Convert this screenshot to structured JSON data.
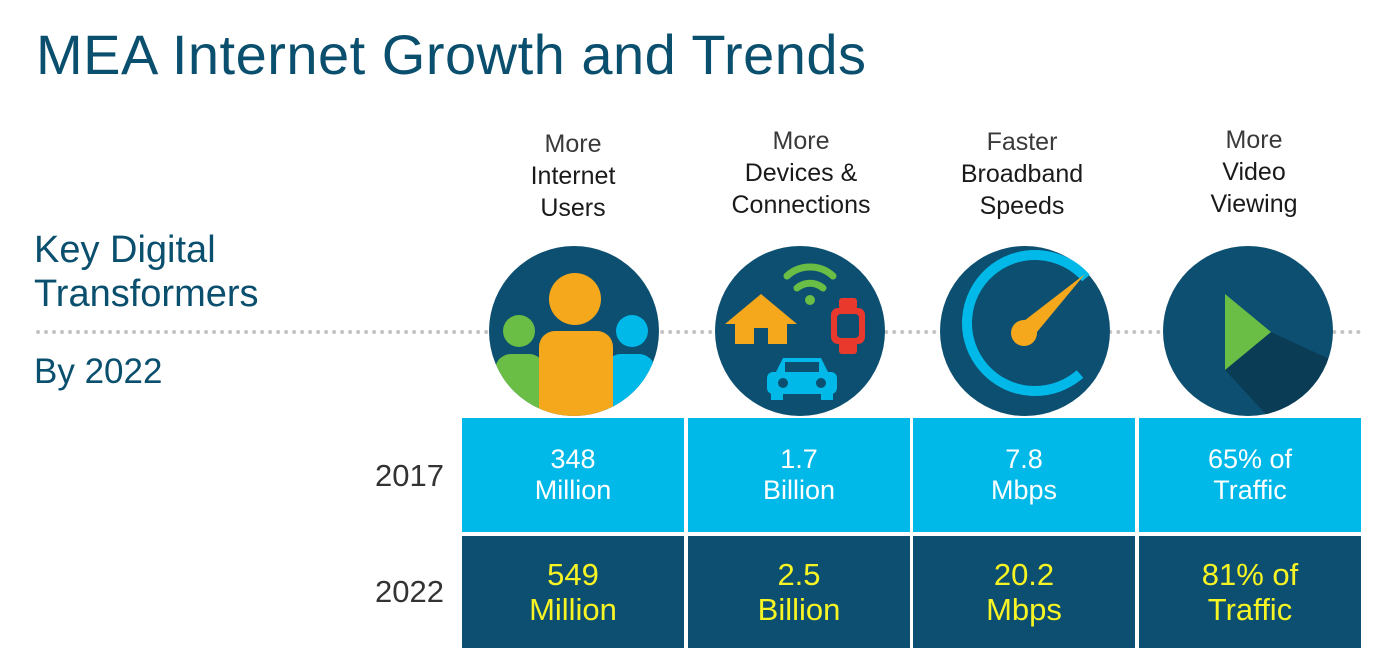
{
  "title": "MEA Internet Growth and Trends",
  "subtitle": {
    "line1": "Key Digital",
    "line2": "Transformers"
  },
  "by_year": "By 2022",
  "columns": [
    {
      "top": "More",
      "line2": "Internet",
      "line3": "Users",
      "icon": "users-icon"
    },
    {
      "top": "More",
      "line2": "Devices &",
      "line3": "Connections",
      "icon": "devices-icon"
    },
    {
      "top": "Faster",
      "line2": "Broadband",
      "line3": "Speeds",
      "icon": "speedometer-icon"
    },
    {
      "top": "More",
      "line2": "Video",
      "line3": "Viewing",
      "icon": "play-icon"
    }
  ],
  "rows": [
    {
      "year": "2017",
      "values": [
        {
          "a": "348",
          "b": "Million"
        },
        {
          "a": "1.7",
          "b": "Billion"
        },
        {
          "a": "7.8",
          "b": "Mbps"
        },
        {
          "a": "65% of",
          "b": "Traffic"
        }
      ]
    },
    {
      "year": "2022",
      "values": [
        {
          "a": "549",
          "b": "Million"
        },
        {
          "a": "2.5",
          "b": "Billion"
        },
        {
          "a": "20.2",
          "b": "Mbps"
        },
        {
          "a": "81% of",
          "b": "Traffic"
        }
      ]
    }
  ],
  "colors": {
    "title": "#0a4f6e",
    "row_2017_bg": "#00b9e8",
    "row_2022_bg": "#0d4f70",
    "row_2022_text": "#f7f424",
    "circle_bg": "#0d4f70"
  }
}
